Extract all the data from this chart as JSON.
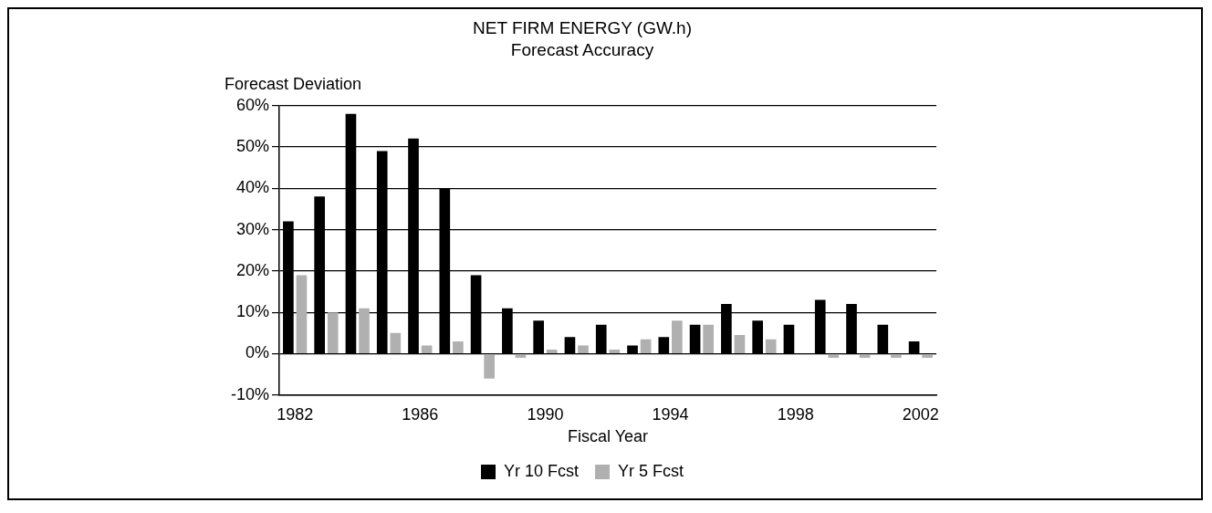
{
  "chart_data": {
    "type": "bar",
    "title": "NET FIRM ENERGY (GW.h)",
    "subtitle": "Forecast Accuracy",
    "ylabel": "Forecast Deviation",
    "xlabel": "Fiscal Year",
    "categories": [
      "1982",
      null,
      null,
      null,
      "1986",
      null,
      null,
      null,
      "1990",
      null,
      null,
      null,
      "1994",
      null,
      null,
      null,
      "1998",
      null,
      null,
      null,
      "2002"
    ],
    "series": [
      {
        "name": "Yr 10 Fcst",
        "color": "#000000",
        "values": [
          32,
          38,
          58,
          49,
          52,
          40,
          19,
          11,
          8,
          4,
          7,
          2,
          4,
          7,
          12,
          8,
          7,
          13,
          12,
          7,
          3
        ]
      },
      {
        "name": "Yr 5 Fcst",
        "color": "#b0b0b0",
        "values": [
          19,
          10,
          11,
          5,
          2,
          3,
          -6,
          -1,
          1,
          2,
          1,
          3.5,
          8,
          7,
          4.5,
          3.5,
          0,
          -1,
          -1,
          -1,
          -1
        ]
      }
    ],
    "ylim": [
      -10,
      60
    ],
    "yticks": [
      {
        "value": -10,
        "label": "-10%"
      },
      {
        "value": 0,
        "label": "0%"
      },
      {
        "value": 10,
        "label": "10%"
      },
      {
        "value": 20,
        "label": "20%"
      },
      {
        "value": 30,
        "label": "30%"
      },
      {
        "value": 40,
        "label": "40%"
      },
      {
        "value": 50,
        "label": "50%"
      },
      {
        "value": 60,
        "label": "60%"
      }
    ],
    "grid": "y",
    "legend": "bottom"
  }
}
